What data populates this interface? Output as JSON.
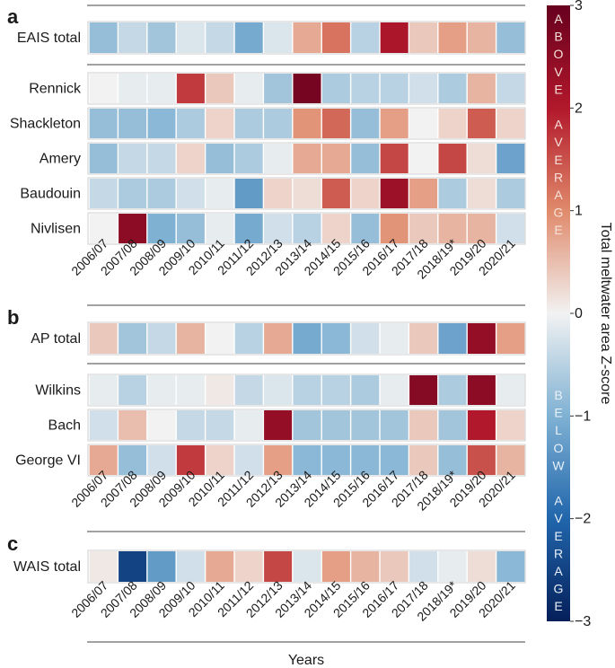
{
  "chart_data": {
    "type": "heatmap",
    "xlabel": "Years",
    "years": [
      "2006/07",
      "2007/08",
      "2008/09",
      "2009/10",
      "2010/11",
      "2011/12",
      "2012/13",
      "2013/14",
      "2014/15",
      "2015/16",
      "2016/17",
      "2017/18",
      "2018/19*",
      "2019/20",
      "2020/21"
    ],
    "colorbar": {
      "label": "Total meltwater area Z-score",
      "range": [
        -3,
        3
      ],
      "ticks": [
        "3",
        "2",
        "1",
        "0",
        "−1",
        "−2",
        "−3"
      ],
      "tick_values": [
        3,
        2,
        1,
        0,
        -1,
        -2,
        -3
      ],
      "above_text": "ABOVE AVERAGE",
      "below_text": "BELOW AVERAGE"
    },
    "panels": [
      {
        "letter": "a",
        "total": {
          "name": "EAIS total",
          "values": [
            -0.8,
            -0.4,
            -0.7,
            -0.2,
            -0.4,
            -1.1,
            -0.2,
            0.7,
            1.2,
            -0.5,
            2.1,
            0.4,
            0.8,
            0.6,
            -0.8
          ]
        },
        "rows": [
          {
            "name": "Rennick",
            "values": [
              0,
              -0.1,
              -0.1,
              1.7,
              0.4,
              -0.1,
              -0.7,
              2.8,
              -0.6,
              -0.5,
              -0.5,
              -0.3,
              -0.6,
              0.6,
              -0.4
            ]
          },
          {
            "name": "Shackleton",
            "values": [
              -0.8,
              -0.8,
              -0.9,
              -0.6,
              0.3,
              -0.6,
              -0.6,
              0.9,
              1.3,
              -0.8,
              0.8,
              0,
              0.3,
              1.4,
              0.3
            ]
          },
          {
            "name": "Amery",
            "values": [
              -0.8,
              -0.4,
              -0.4,
              0.3,
              -0.8,
              -0.6,
              -0.1,
              0.7,
              0.7,
              -0.8,
              1.6,
              0,
              1.6,
              0.2,
              -1.2
            ]
          },
          {
            "name": "Baudouin",
            "values": [
              -0.4,
              -0.6,
              -0.6,
              -0.3,
              -0.1,
              -1.3,
              0.3,
              0.2,
              1.4,
              0.3,
              2.3,
              0.8,
              -0.6,
              0.2,
              -0.6
            ]
          },
          {
            "name": "Nivlisen",
            "values": [
              0,
              2.5,
              -1,
              -0.8,
              -0.1,
              -1.1,
              -0.3,
              -0.5,
              0.3,
              -0.8,
              0.9,
              0.4,
              0.6,
              0.6,
              -0.3
            ]
          }
        ]
      },
      {
        "letter": "b",
        "total": {
          "name": "AP total",
          "values": [
            0.4,
            -0.7,
            -0.4,
            0.6,
            0,
            -0.5,
            0.7,
            -1.1,
            -0.9,
            -0.3,
            -0.1,
            0.4,
            -1.2,
            2.4,
            0.8
          ]
        },
        "rows": [
          {
            "name": "Wilkins",
            "values": [
              -0.1,
              -0.5,
              -0.1,
              -0.1,
              0.1,
              -0.4,
              -0.2,
              -0.5,
              -0.5,
              -0.6,
              -0.1,
              2.6,
              -0.6,
              2.5,
              -0.1
            ]
          },
          {
            "name": "Bach",
            "values": [
              -0.3,
              0.5,
              0,
              -0.4,
              -0.4,
              -0.1,
              2.4,
              -0.7,
              -0.7,
              -0.7,
              -0.7,
              0.4,
              -0.7,
              2,
              0.3
            ]
          },
          {
            "name": "George VI",
            "values": [
              0.7,
              -0.8,
              -0.3,
              1.7,
              0.3,
              -0.3,
              0.8,
              -0.9,
              -0.9,
              -0.9,
              -0.9,
              0.4,
              -0.8,
              1.5,
              0.6
            ]
          }
        ]
      },
      {
        "letter": "c",
        "total": {
          "name": "WAIS total",
          "values": [
            0.1,
            -2.5,
            -1.3,
            -0.3,
            0.7,
            0.3,
            1.6,
            -0.2,
            0.8,
            0.6,
            0.4,
            -0.3,
            -0.1,
            0.2,
            -0.9
          ]
        },
        "rows": []
      }
    ]
  }
}
